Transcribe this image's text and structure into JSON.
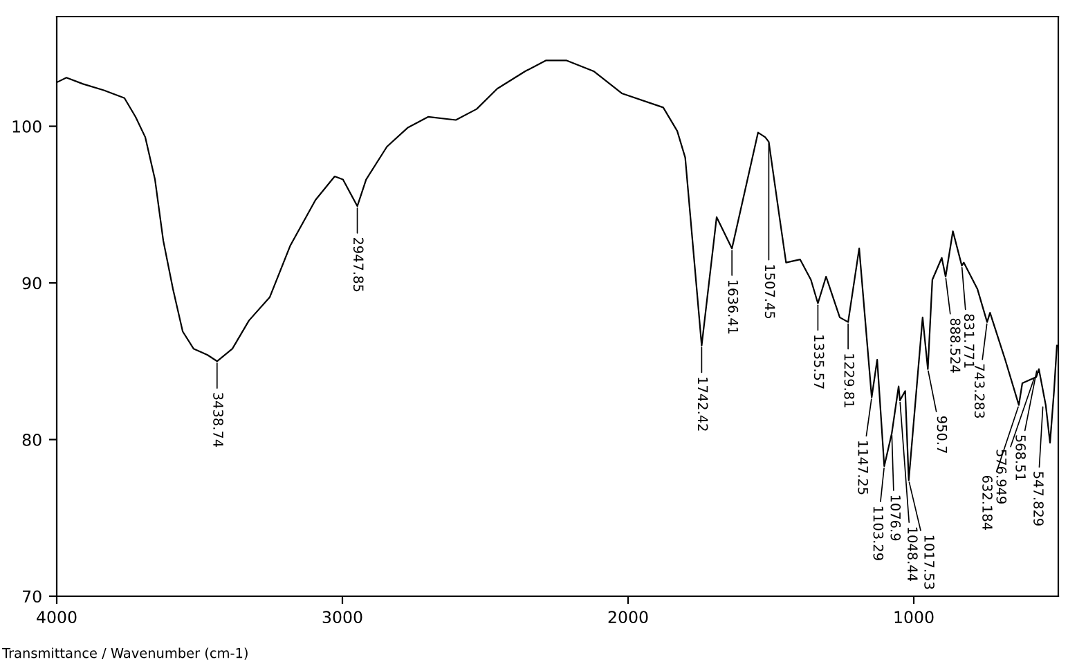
{
  "chart_data": {
    "type": "line",
    "xlabel": "Transmittance / Wavenumber (cm-1)",
    "xlim": [
      4000,
      494
    ],
    "ylim": [
      70,
      107
    ],
    "xticks": [
      4000,
      3000,
      2000,
      1000
    ],
    "yticks": [
      70,
      80,
      90,
      100
    ],
    "grid": false,
    "legend": false,
    "marker": "none",
    "line_style": "solid",
    "series": [
      {
        "color": "#000000",
        "x": [
          4000,
          3966,
          3908,
          3835,
          3763,
          3724,
          3690,
          3656,
          3627,
          3593,
          3559,
          3521,
          3472,
          3438.74,
          3385,
          3327,
          3254,
          3182,
          3094,
          3027,
          2998,
          2947.85,
          2917,
          2844,
          2772,
          2700,
          2603,
          2530,
          2458,
          2361,
          2288,
          2215,
          2119,
          2022,
          1877,
          1828,
          1800,
          1742.42,
          1690,
          1636.41,
          1545,
          1520,
          1507.45,
          1470,
          1447,
          1398,
          1360,
          1335.57,
          1307,
          1259,
          1229.81,
          1191,
          1147.25,
          1128,
          1103.29,
          1076.9,
          1053,
          1048.44,
          1030,
          1017.53,
          969,
          950.7,
          935,
          902,
          888.524,
          863,
          831.771,
          825,
          777,
          743.283,
          733,
          680,
          632.184,
          620,
          571,
          562,
          538,
          523,
          509,
          499
        ],
        "values": [
          102.8,
          103.1,
          102.7,
          102.3,
          101.8,
          100.6,
          99.3,
          96.6,
          92.7,
          89.6,
          86.9,
          85.8,
          85.4,
          85.0,
          85.8,
          87.6,
          89.1,
          92.4,
          95.3,
          96.8,
          96.6,
          94.9,
          96.6,
          98.7,
          99.9,
          100.6,
          100.4,
          101.1,
          102.4,
          103.5,
          104.2,
          104.2,
          103.5,
          102.1,
          101.2,
          99.7,
          98.0,
          86.0,
          94.2,
          92.2,
          99.6,
          99.3,
          99.0,
          94.2,
          91.3,
          91.5,
          90.2,
          88.7,
          90.4,
          87.8,
          87.5,
          92.2,
          82.7,
          85.1,
          78.3,
          80.4,
          83.4,
          82.5,
          83.1,
          77.4,
          87.8,
          84.5,
          90.2,
          91.6,
          90.4,
          93.3,
          91.1,
          91.3,
          89.6,
          87.5,
          88.1,
          85.1,
          82.2,
          83.6,
          84.0,
          84.5,
          82.2,
          79.8,
          83.1,
          86.0
        ]
      }
    ],
    "annotations": [
      {
        "text": "3438.74",
        "x": 3438.74,
        "y": 85.0
      },
      {
        "text": "2947.85",
        "x": 2947.85,
        "y": 94.9
      },
      {
        "text": "1742.42",
        "x": 1742.42,
        "y": 86.0
      },
      {
        "text": "1636.41",
        "x": 1636.41,
        "y": 92.2
      },
      {
        "text": "1507.45",
        "x": 1507.45,
        "y": 99.0
      },
      {
        "text": "1335.57",
        "x": 1335.57,
        "y": 88.7
      },
      {
        "text": "1229.81",
        "x": 1229.81,
        "y": 87.5
      },
      {
        "text": "1147.25",
        "x": 1147.25,
        "y": 82.7
      },
      {
        "text": "1103.29",
        "x": 1103.29,
        "y": 78.3
      },
      {
        "text": "1076.9",
        "x": 1076.9,
        "y": 80.4
      },
      {
        "text": "1048.44",
        "x": 1048.44,
        "y": 82.5
      },
      {
        "text": "1017.53",
        "x": 1017.53,
        "y": 77.4
      },
      {
        "text": "950.7",
        "x": 950.7,
        "y": 84.5
      },
      {
        "text": "888.524",
        "x": 888.524,
        "y": 90.4
      },
      {
        "text": "831.771",
        "x": 831.771,
        "y": 91.1
      },
      {
        "text": "743.283",
        "x": 743.283,
        "y": 87.5
      },
      {
        "text": "632.184",
        "x": 632.184,
        "y": 82.2
      },
      {
        "text": "576.949",
        "x": 576.949,
        "y": 84.0
      },
      {
        "text": "568.51",
        "x": 568.51,
        "y": 84.5
      },
      {
        "text": "547.829",
        "x": 547.829,
        "y": 82.2
      }
    ]
  }
}
